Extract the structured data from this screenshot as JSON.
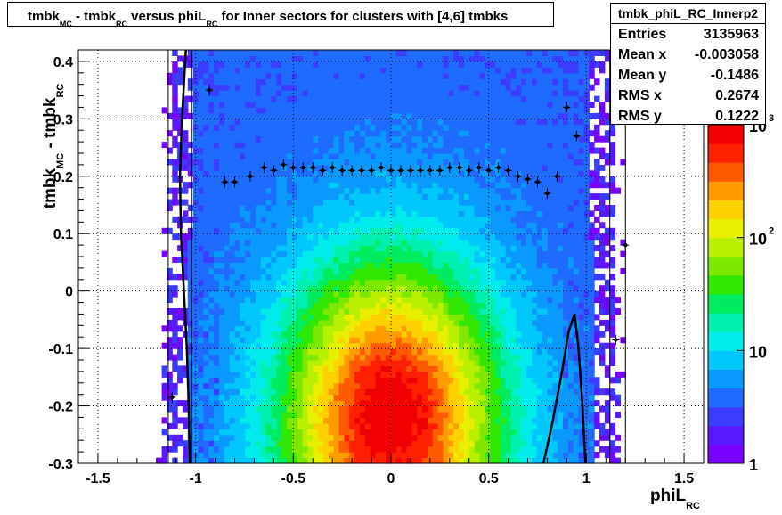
{
  "title": {
    "main_a": "tmbk",
    "sub_a": "MC",
    "main_b": " - tmbk",
    "sub_b": "RC",
    "main_c": " versus phiL",
    "sub_c": "RC",
    "main_d": " for Inner sectors for clusters with [4,6] tmbks"
  },
  "stats": {
    "name": "tmbk_phiL_RC_Innerp2",
    "rows": [
      {
        "key": "Entries",
        "value": "3135963"
      },
      {
        "key": "Mean x",
        "value": "-0.003058"
      },
      {
        "key": "Mean y",
        "value": "-0.1486"
      },
      {
        "key": "RMS x",
        "value": "0.2674"
      },
      {
        "key": "RMS y",
        "value": "0.1222"
      }
    ]
  },
  "axes": {
    "x_label_main": "phiL",
    "x_label_sub": "RC",
    "y_label_main": "tmbk",
    "y_label_sub1": "MC",
    "y_label_mid": " - tmbk",
    "y_label_sub2": "RC"
  },
  "colors": {
    "palette": [
      "#7a00ff",
      "#5a18ff",
      "#3a3cff",
      "#1f6bff",
      "#0a9aff",
      "#00c8ff",
      "#00ecec",
      "#00f0b0",
      "#00ec60",
      "#30e800",
      "#7ee800",
      "#b8f000",
      "#e8f000",
      "#ffd000",
      "#ff9a00",
      "#ff5a00",
      "#ff2000",
      "#f00000"
    ],
    "profile": "#000000",
    "fit": "#000000"
  },
  "chart_data": {
    "type": "heatmap",
    "title": "tmbk_MC - tmbk_RC versus phiL_RC for Inner sectors for clusters with [4,6] tmbks",
    "xlabel": "phiL_RC",
    "ylabel": "tmbk_MC - tmbk_RC",
    "xlim": [
      -1.6,
      1.6
    ],
    "ylim": [
      -0.3,
      0.42
    ],
    "x_ticks": [
      -1.5,
      -1,
      -0.5,
      0,
      0.5,
      1,
      1.5
    ],
    "y_ticks": [
      -0.3,
      -0.2,
      -0.1,
      0,
      0.1,
      0.2,
      0.3,
      0.4
    ],
    "grid": true,
    "z_scale": "log",
    "z_range": [
      1,
      1000
    ],
    "z_ticks": [
      "1",
      "10",
      "10^2",
      "10^3"
    ],
    "profile_points": [
      [
        -1.12,
        -0.185
      ],
      [
        -0.93,
        0.35
      ],
      [
        -0.85,
        0.19
      ],
      [
        -0.8,
        0.19
      ],
      [
        -0.72,
        0.2
      ],
      [
        -0.65,
        0.215
      ],
      [
        -0.6,
        0.21
      ],
      [
        -0.55,
        0.22
      ],
      [
        -0.5,
        0.215
      ],
      [
        -0.45,
        0.215
      ],
      [
        -0.4,
        0.215
      ],
      [
        -0.35,
        0.21
      ],
      [
        -0.3,
        0.215
      ],
      [
        -0.25,
        0.21
      ],
      [
        -0.2,
        0.21
      ],
      [
        -0.15,
        0.21
      ],
      [
        -0.1,
        0.21
      ],
      [
        -0.05,
        0.215
      ],
      [
        0.0,
        0.21
      ],
      [
        0.05,
        0.21
      ],
      [
        0.1,
        0.21
      ],
      [
        0.15,
        0.21
      ],
      [
        0.2,
        0.21
      ],
      [
        0.25,
        0.21
      ],
      [
        0.3,
        0.215
      ],
      [
        0.35,
        0.215
      ],
      [
        0.4,
        0.21
      ],
      [
        0.45,
        0.215
      ],
      [
        0.5,
        0.21
      ],
      [
        0.55,
        0.215
      ],
      [
        0.6,
        0.21
      ],
      [
        0.65,
        0.2
      ],
      [
        0.7,
        0.195
      ],
      [
        0.75,
        0.19
      ],
      [
        0.8,
        0.17
      ],
      [
        0.85,
        0.2
      ],
      [
        0.9,
        0.32
      ],
      [
        0.95,
        0.27
      ],
      [
        1.2,
        0.08
      ],
      [
        1.15,
        -0.085
      ]
    ],
    "fit_left": [
      [
        -1.05,
        0.42
      ],
      [
        -1.07,
        0.3
      ],
      [
        -1.08,
        0.2
      ],
      [
        -1.075,
        0.1
      ],
      [
        -1.06,
        0.0
      ],
      [
        -1.045,
        -0.1
      ],
      [
        -1.035,
        -0.2
      ],
      [
        -1.03,
        -0.3
      ]
    ],
    "fit_right": [
      [
        0.78,
        -0.3
      ],
      [
        0.82,
        -0.24
      ],
      [
        0.87,
        -0.15
      ],
      [
        0.91,
        -0.07
      ],
      [
        0.94,
        -0.04
      ],
      [
        0.96,
        -0.1
      ],
      [
        0.98,
        -0.2
      ],
      [
        0.995,
        -0.3
      ]
    ]
  }
}
